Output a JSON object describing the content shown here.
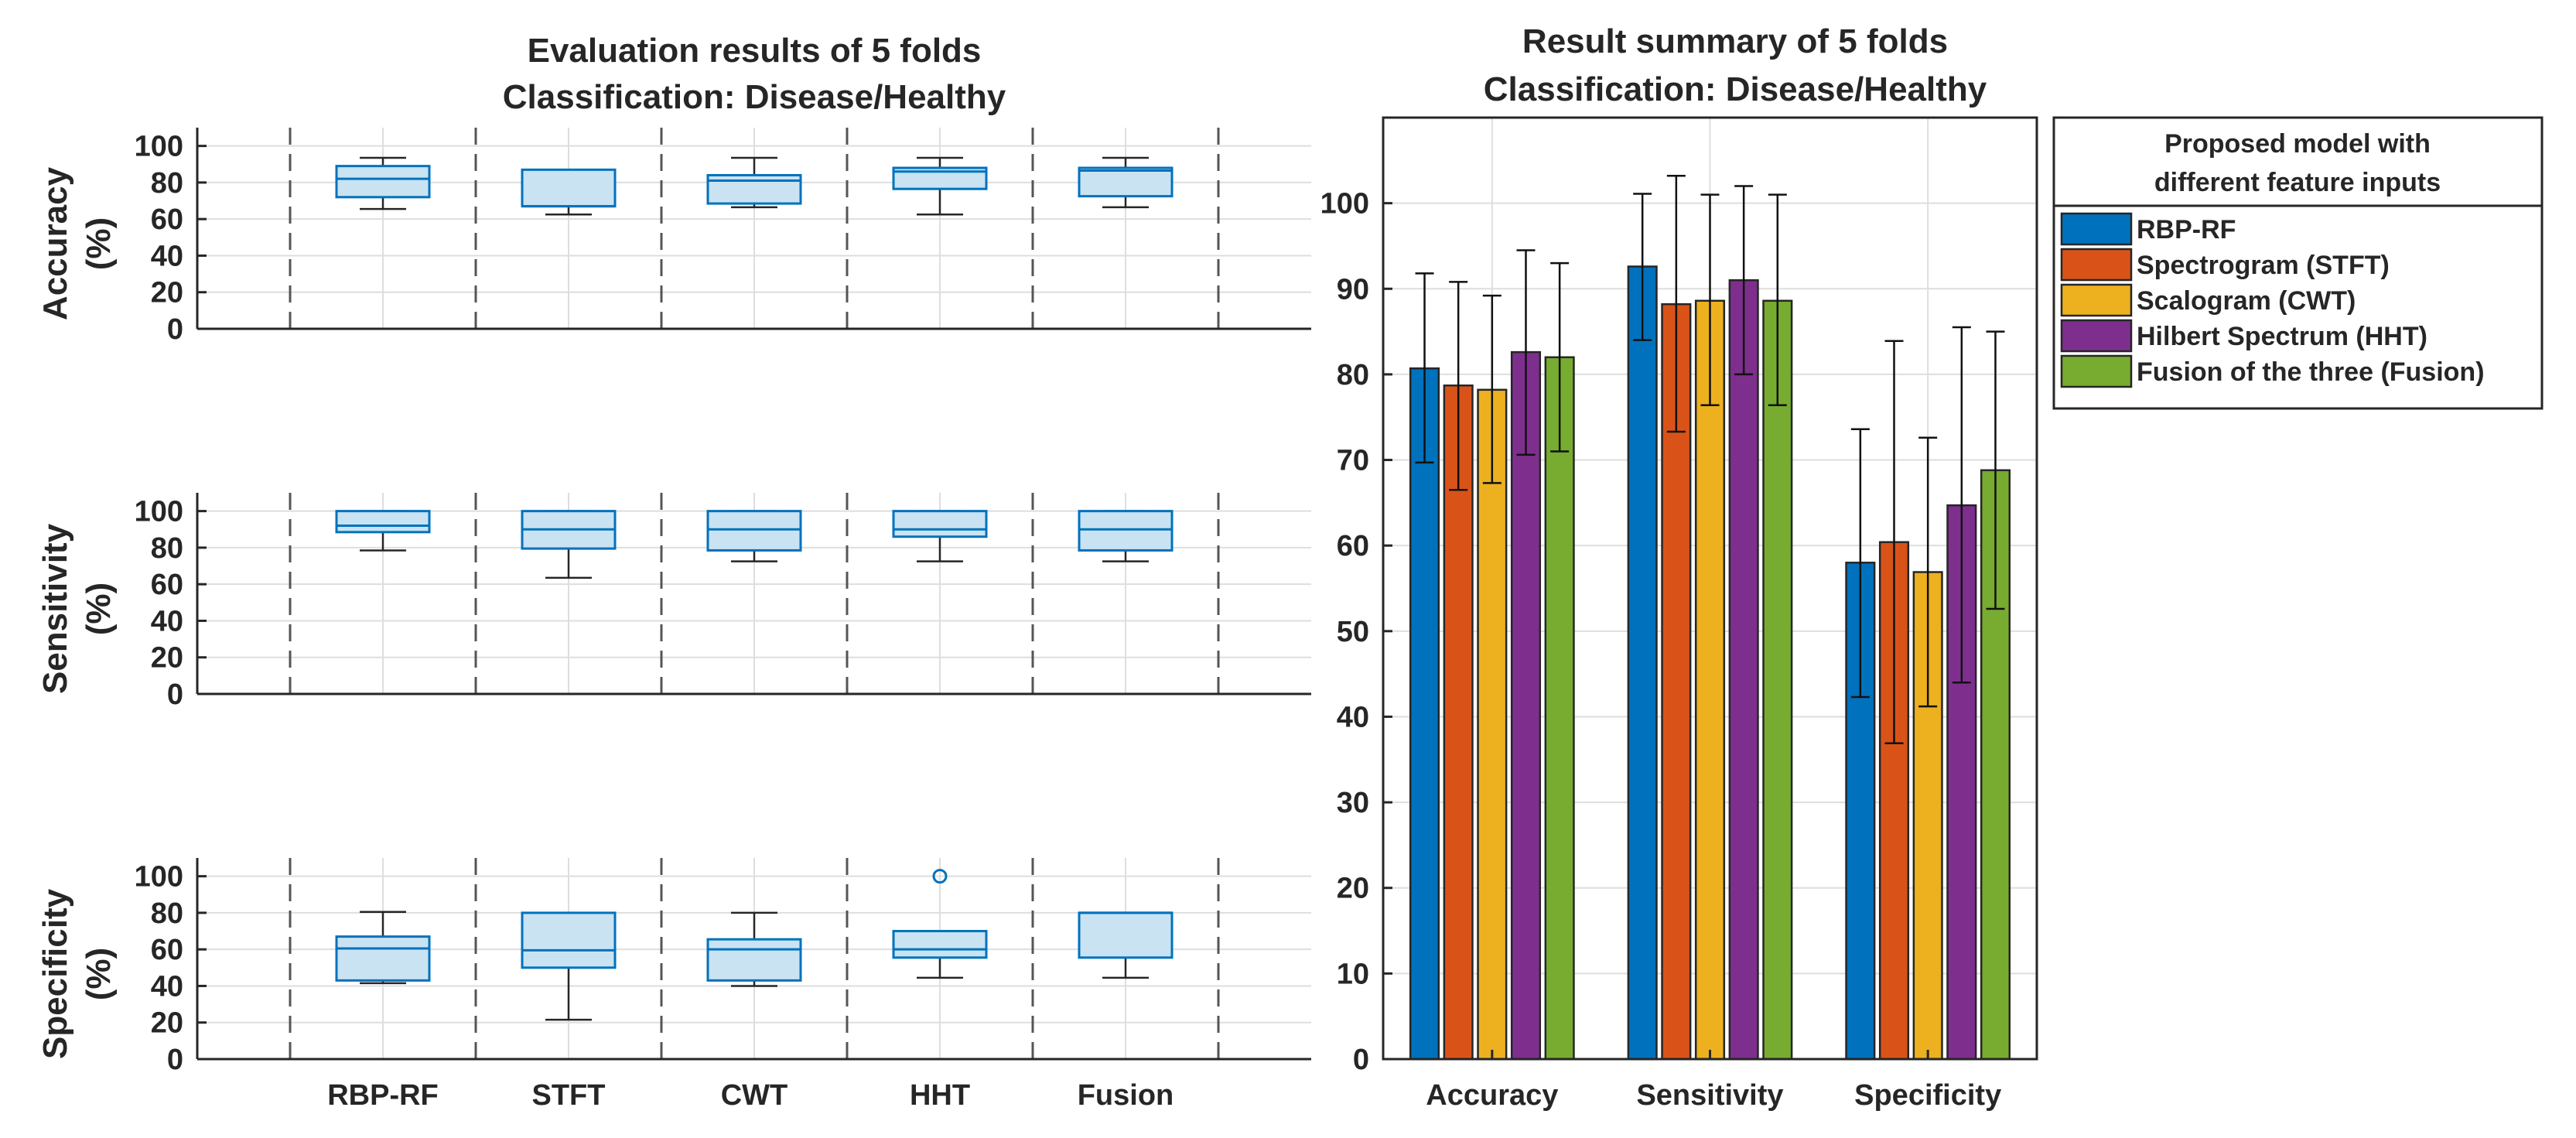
{
  "colors": {
    "box_edge": "#0072BD",
    "box_fill": "#C9E3F2",
    "grid": "#DEDEDE",
    "axis": "#262626",
    "divider": "#555555"
  },
  "chart_data": [
    {
      "type": "box",
      "title_line1": "Evaluation results of 5 folds",
      "title_line2": "Classification: Disease/Healthy",
      "categories": [
        "RBP-RF",
        "STFT",
        "CWT",
        "HHT",
        "Fusion"
      ],
      "ylim": [
        0,
        110
      ],
      "yticks": [
        "0",
        "20",
        "40",
        "60",
        "80",
        "100"
      ],
      "grid": true,
      "panels": [
        {
          "ylabel": "Accuracy",
          "ylabel_unit": "(%)",
          "boxes": [
            {
              "category": "RBP-RF",
              "min": 65.5,
              "q1": 72,
              "median": 82,
              "q3": 89,
              "max": 93.5,
              "outliers": []
            },
            {
              "category": "STFT",
              "min": 62.5,
              "q1": 67,
              "median": 67,
              "q3": 87,
              "max": 87,
              "outliers": []
            },
            {
              "category": "CWT",
              "min": 66.5,
              "q1": 68.5,
              "median": 81,
              "q3": 84,
              "max": 93.5,
              "outliers": []
            },
            {
              "category": "HHT",
              "min": 62.5,
              "q1": 76.5,
              "median": 86,
              "q3": 88,
              "max": 93.5,
              "outliers": []
            },
            {
              "category": "Fusion",
              "min": 66.5,
              "q1": 72.5,
              "median": 86.5,
              "q3": 88,
              "max": 93.5,
              "outliers": []
            }
          ]
        },
        {
          "ylabel": "Sensitivity",
          "ylabel_unit": "(%)",
          "boxes": [
            {
              "category": "RBP-RF",
              "min": 78.5,
              "q1": 88.5,
              "median": 92,
              "q3": 100,
              "max": 100,
              "outliers": []
            },
            {
              "category": "STFT",
              "min": 63.5,
              "q1": 79.5,
              "median": 90,
              "q3": 100,
              "max": 100,
              "outliers": []
            },
            {
              "category": "CWT",
              "min": 72.5,
              "q1": 78.5,
              "median": 90,
              "q3": 100,
              "max": 100,
              "outliers": []
            },
            {
              "category": "HHT",
              "min": 72.5,
              "q1": 86,
              "median": 90,
              "q3": 100,
              "max": 100,
              "outliers": []
            },
            {
              "category": "Fusion",
              "min": 72.5,
              "q1": 78.5,
              "median": 90,
              "q3": 100,
              "max": 100,
              "outliers": []
            }
          ]
        },
        {
          "ylabel": "Specificity",
          "ylabel_unit": "(%)",
          "boxes": [
            {
              "category": "RBP-RF",
              "min": 41.5,
              "q1": 43,
              "median": 60.5,
              "q3": 67,
              "max": 80.5,
              "outliers": []
            },
            {
              "category": "STFT",
              "min": 21.5,
              "q1": 50,
              "median": 59.5,
              "q3": 80,
              "max": 80,
              "outliers": []
            },
            {
              "category": "CWT",
              "min": 40,
              "q1": 43,
              "median": 60,
              "q3": 65.5,
              "max": 80,
              "outliers": []
            },
            {
              "category": "HHT",
              "min": 44.5,
              "q1": 55.5,
              "median": 60,
              "q3": 70,
              "max": 70,
              "outliers": [
                100
              ]
            },
            {
              "category": "Fusion",
              "min": 44.5,
              "q1": 55.5,
              "median": 80,
              "q3": 80,
              "max": 80,
              "outliers": []
            }
          ]
        }
      ]
    },
    {
      "type": "bar",
      "title_line1": "Result summary of 5 folds",
      "title_line2": "Classification: Disease/Healthy",
      "categories": [
        "Accuracy",
        "Sensitivity",
        "Specificity"
      ],
      "ylim": [
        0,
        110
      ],
      "yticks": [
        "0",
        "10",
        "20",
        "30",
        "40",
        "50",
        "60",
        "70",
        "80",
        "90",
        "100"
      ],
      "grid": true,
      "legend_title_line1": "Proposed model with",
      "legend_title_line2": "different feature inputs",
      "legend_position": "outside-right-top",
      "series": [
        {
          "name": "RBP-RF",
          "color": "#0072BD",
          "values": [
            80.7,
            92.6,
            58.0
          ],
          "err_low": [
            69.7,
            84.0,
            42.3
          ],
          "err_high": [
            91.8,
            101.1,
            73.6
          ]
        },
        {
          "name": "Spectrogram (STFT)",
          "color": "#D95319",
          "values": [
            78.7,
            88.2,
            60.4
          ],
          "err_low": [
            66.5,
            73.3,
            36.9
          ],
          "err_high": [
            90.8,
            103.2,
            83.9
          ]
        },
        {
          "name": "Scalogram (CWT)",
          "color": "#EDB120",
          "values": [
            78.2,
            88.6,
            56.9
          ],
          "err_low": [
            67.3,
            76.4,
            41.2
          ],
          "err_high": [
            89.2,
            101.0,
            72.6
          ]
        },
        {
          "name": "Hilbert Spectrum (HHT)",
          "color": "#7E2F8E",
          "values": [
            82.6,
            91.0,
            64.7
          ],
          "err_low": [
            70.6,
            80.0,
            44.0
          ],
          "err_high": [
            94.5,
            102.0,
            85.5
          ]
        },
        {
          "name": "Fusion of the three (Fusion)",
          "color": "#77AC30",
          "values": [
            82.0,
            88.6,
            68.8
          ],
          "err_low": [
            71.0,
            76.4,
            52.6
          ],
          "err_high": [
            93.0,
            101.0,
            85.0
          ]
        }
      ]
    }
  ]
}
